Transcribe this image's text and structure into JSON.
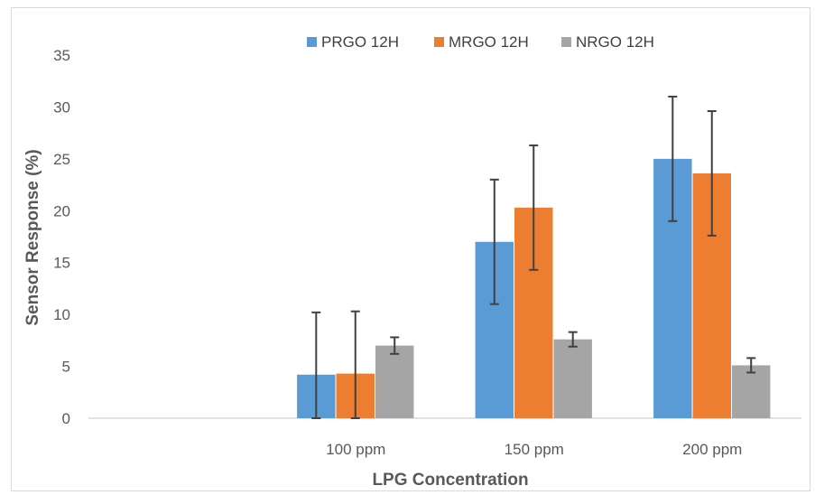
{
  "chart_data": {
    "type": "bar",
    "categories": [
      "",
      "100 ppm",
      "150 ppm",
      "200 ppm"
    ],
    "series": [
      {
        "name": "PRGO 12H",
        "color": "#5b9bd5",
        "values": [
          null,
          4.2,
          17.0,
          25.0
        ],
        "errors": [
          null,
          6.0,
          6.0,
          6.0
        ]
      },
      {
        "name": "MRGO 12H",
        "color": "#ed7d31",
        "values": [
          null,
          4.3,
          20.3,
          23.6
        ],
        "errors": [
          null,
          6.0,
          6.0,
          6.0
        ]
      },
      {
        "name": "NRGO 12H",
        "color": "#a5a5a5",
        "values": [
          null,
          7.0,
          7.6,
          5.1
        ],
        "errors": [
          null,
          0.8,
          0.7,
          0.7
        ]
      }
    ],
    "xlabel": "LPG Concentration",
    "ylabel": "Sensor Response (%)",
    "ylim": [
      0,
      35
    ],
    "yticks": [
      0,
      5,
      10,
      15,
      20,
      25,
      30,
      35
    ],
    "grid": false,
    "legend": "top"
  }
}
